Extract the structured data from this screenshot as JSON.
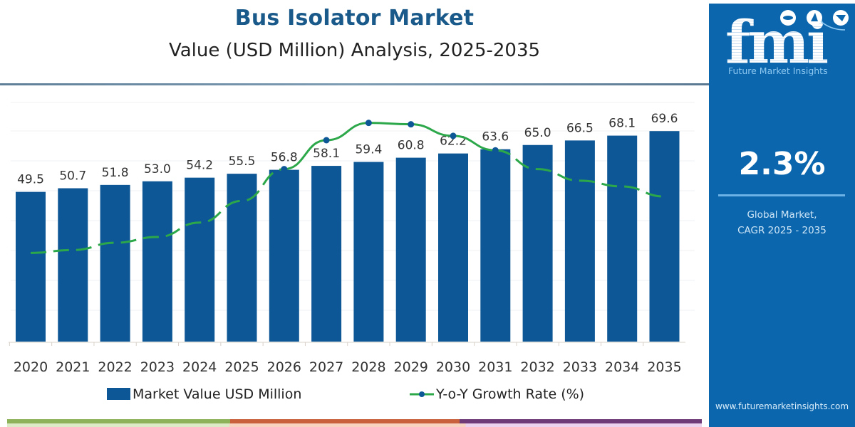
{
  "header": {
    "title": "Bus Isolator Market",
    "subtitle": "Value (USD Million) Analysis, 2025-2035"
  },
  "side_panel": {
    "logo_letters": "fmi",
    "logo_caption": "Future Market Insights",
    "logo_icons": [
      "americas-globe-icon",
      "europe-africa-globe-icon",
      "asia-globe-icon"
    ],
    "cagr_value": "2.3%",
    "cagr_label_line1": "Global Market,",
    "cagr_label_line2": "CAGR 2025 - 2035",
    "website": "www.futuremarketinsights.com",
    "colors": {
      "background": "#0b66ad",
      "accent": "#6cb2e6"
    }
  },
  "legend": {
    "bar_label": "Market Value USD Million",
    "line_label": "Y-o-Y Growth Rate (%)"
  },
  "footer_bars": [
    {
      "color": "#8db25a"
    },
    {
      "color": "#c8613c"
    },
    {
      "color": "#6e3a78"
    }
  ],
  "chart_data": {
    "type": "bar",
    "title": "Bus Isolator Market",
    "subtitle": "Value (USD Million) Analysis, 2025-2035",
    "xlabel": "",
    "ylabel": "",
    "categories": [
      "2020",
      "2021",
      "2022",
      "2023",
      "2024",
      "2025",
      "2026",
      "2027",
      "2028",
      "2029",
      "2030",
      "2031",
      "2032",
      "2033",
      "2034",
      "2035"
    ],
    "series": [
      {
        "name": "Market Value USD Million",
        "type": "bar",
        "color": "#0e5796",
        "values": [
          49.5,
          50.7,
          51.8,
          53.0,
          54.2,
          55.5,
          56.8,
          58.1,
          59.4,
          60.8,
          62.2,
          63.6,
          65.0,
          66.5,
          68.1,
          69.6
        ],
        "labels": [
          "49.5",
          "50.7",
          "51.8",
          "53.0",
          "54.2",
          "55.5",
          "56.8",
          "58.1",
          "59.4",
          "60.8",
          "62.2",
          "63.6",
          "65.0",
          "66.5",
          "68.1",
          "69.6"
        ]
      },
      {
        "name": "Y-o-Y Growth Rate (%)",
        "type": "line",
        "color": "#2ca84a",
        "marker_color": "#0e5796",
        "values_relative": [
          0.22,
          0.24,
          0.29,
          0.33,
          0.43,
          0.58,
          0.8,
          1.0,
          1.12,
          1.11,
          1.03,
          0.93,
          0.8,
          0.72,
          0.68,
          0.61
        ],
        "note": "Unlabeled secondary axis; values are relative heights read from pixel positions. Solid with markers 2026-2031, dashed elsewhere."
      }
    ],
    "ylim": [
      0,
      75
    ],
    "grid": true,
    "legend_position": "bottom"
  }
}
